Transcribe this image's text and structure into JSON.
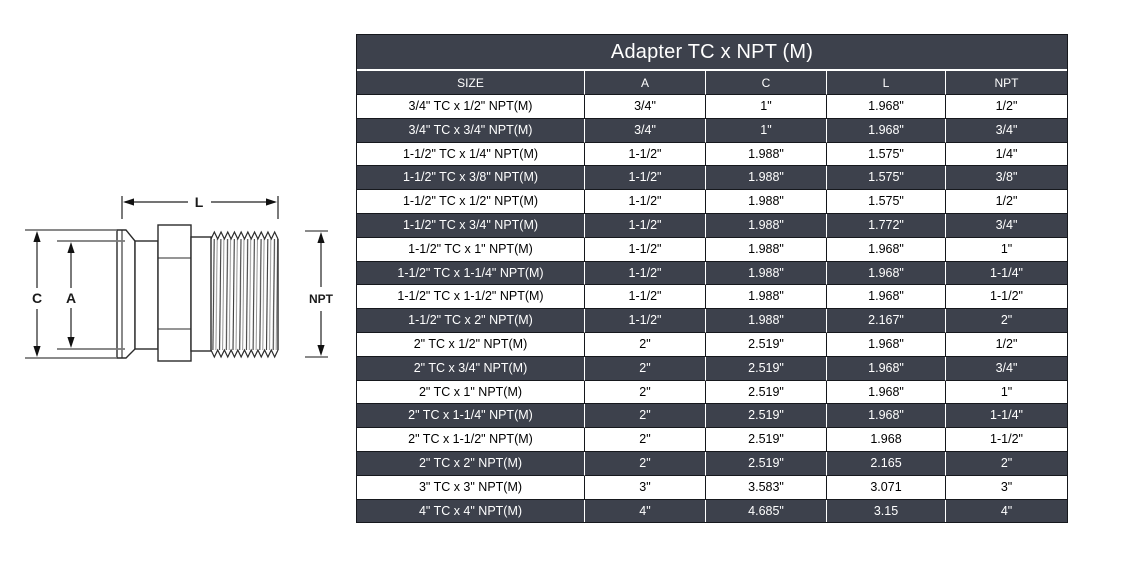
{
  "diagram": {
    "labels": {
      "length": "L",
      "clamp": "C",
      "tube": "A",
      "thread": "NPT"
    }
  },
  "table": {
    "title": "Adapter TC x NPT (M)",
    "columns": [
      "SIZE",
      "A",
      "C",
      "L",
      "NPT"
    ],
    "rows": [
      [
        "3/4\" TC x 1/2\" NPT(M)",
        "3/4\"",
        "1\"",
        "1.968\"",
        "1/2\""
      ],
      [
        "3/4\" TC x 3/4\" NPT(M)",
        "3/4\"",
        "1\"",
        "1.968\"",
        "3/4\""
      ],
      [
        "1-1/2\" TC x 1/4\" NPT(M)",
        "1-1/2\"",
        "1.988\"",
        "1.575\"",
        "1/4\""
      ],
      [
        "1-1/2\" TC x 3/8\" NPT(M)",
        "1-1/2\"",
        "1.988\"",
        "1.575\"",
        "3/8\""
      ],
      [
        "1-1/2\" TC x 1/2\" NPT(M)",
        "1-1/2\"",
        "1.988\"",
        "1.575\"",
        "1/2\""
      ],
      [
        "1-1/2\" TC x 3/4\" NPT(M)",
        "1-1/2\"",
        "1.988\"",
        "1.772\"",
        "3/4\""
      ],
      [
        "1-1/2\" TC x 1\" NPT(M)",
        "1-1/2\"",
        "1.988\"",
        "1.968\"",
        "1\""
      ],
      [
        "1-1/2\" TC x 1-1/4\" NPT(M)",
        "1-1/2\"",
        "1.988\"",
        "1.968\"",
        "1-1/4\""
      ],
      [
        "1-1/2\" TC x 1-1/2\" NPT(M)",
        "1-1/2\"",
        "1.988\"",
        "1.968\"",
        "1-1/2\""
      ],
      [
        "1-1/2\" TC x 2\" NPT(M)",
        "1-1/2\"",
        "1.988\"",
        "2.167\"",
        "2\""
      ],
      [
        "2\" TC x 1/2\" NPT(M)",
        "2\"",
        "2.519\"",
        "1.968\"",
        "1/2\""
      ],
      [
        "2\" TC x 3/4\" NPT(M)",
        "2\"",
        "2.519\"",
        "1.968\"",
        "3/4\""
      ],
      [
        "2\" TC x 1\" NPT(M)",
        "2\"",
        "2.519\"",
        "1.968\"",
        "1\""
      ],
      [
        "2\" TC x 1-1/4\" NPT(M)",
        "2\"",
        "2.519\"",
        "1.968\"",
        "1-1/4\""
      ],
      [
        "2\" TC x 1-1/2\" NPT(M)",
        "2\"",
        "2.519\"",
        "1.968",
        "1-1/2\""
      ],
      [
        "2\" TC x 2\" NPT(M)",
        "2\"",
        "2.519\"",
        "2.165",
        "2\""
      ],
      [
        "3\" TC x 3\" NPT(M)",
        "3\"",
        "3.583\"",
        "3.071",
        "3\""
      ],
      [
        "4\" TC x 4\" NPT(M)",
        "4\"",
        "4.685\"",
        "3.15",
        "4\""
      ]
    ],
    "colors": {
      "header_bg": "#3d414c",
      "alt_row_bg": "#3d414c",
      "row_bg": "#ffffff",
      "header_text": "#ffffff",
      "body_text": "#000000",
      "grid_dark": "#16181d",
      "grid_light": "#ffffff"
    }
  }
}
